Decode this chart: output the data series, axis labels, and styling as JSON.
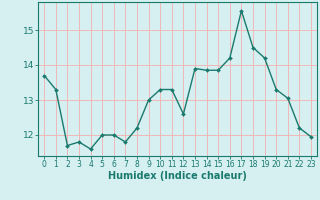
{
  "x": [
    0,
    1,
    2,
    3,
    4,
    5,
    6,
    7,
    8,
    9,
    10,
    11,
    12,
    13,
    14,
    15,
    16,
    17,
    18,
    19,
    20,
    21,
    22,
    23
  ],
  "y": [
    13.7,
    13.3,
    11.7,
    11.8,
    11.6,
    12.0,
    12.0,
    11.8,
    12.2,
    13.0,
    13.3,
    13.3,
    12.6,
    13.9,
    13.85,
    13.85,
    14.2,
    15.55,
    14.5,
    14.2,
    13.3,
    13.05,
    12.2,
    11.95
  ],
  "line_color": "#1a7a6e",
  "marker": "D",
  "marker_size": 2.0,
  "bg_color": "#d6eff0",
  "grid_color": "#f0b8b8",
  "xlabel": "Humidex (Indice chaleur)",
  "ylim": [
    11.4,
    15.8
  ],
  "xlim": [
    -0.5,
    23.5
  ],
  "yticks": [
    12,
    13,
    14,
    15
  ],
  "xtick_labels": [
    "0",
    "1",
    "2",
    "3",
    "4",
    "5",
    "6",
    "7",
    "8",
    "9",
    "10",
    "11",
    "12",
    "13",
    "14",
    "15",
    "16",
    "17",
    "18",
    "19",
    "20",
    "21",
    "22",
    "23"
  ],
  "tick_color": "#1a7a6e",
  "label_color": "#1a7a6e",
  "font_size_xlabel": 7,
  "font_size_yticks": 6.5,
  "font_size_xticks": 5.5,
  "line_width": 1.0
}
